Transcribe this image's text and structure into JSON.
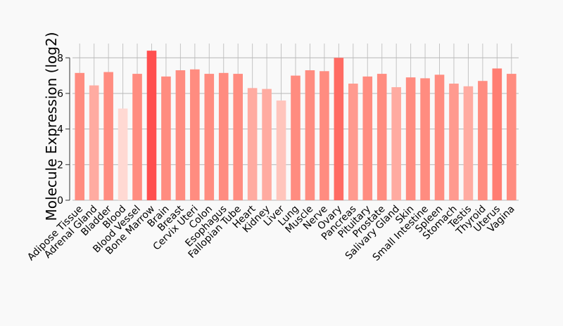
{
  "chart_data": {
    "type": "bar",
    "title": "",
    "xlabel": "",
    "ylabel": "Molecule Expression (log2)",
    "ylim": [
      0,
      8.8
    ],
    "yticks": [
      0,
      2,
      4,
      6,
      8
    ],
    "grid": true,
    "legend": "none",
    "categories": [
      "Adipose Tissue",
      "Adrenal Gland",
      "Bladder",
      "Blood",
      "Blood Vessel",
      "Bone Marrow",
      "Brain",
      "Breast",
      "Cervix Uteri",
      "Colon",
      "Esophagus",
      "Fallopian Tube",
      "Heart",
      "Kidney",
      "Liver",
      "Lung",
      "Muscle",
      "Nerve",
      "Ovary",
      "Pancreas",
      "Pituitary",
      "Prostate",
      "Salivary Gland",
      "Skin",
      "Small Intestine",
      "Spleen",
      "Stomach",
      "Testis",
      "Thyroid",
      "Uterus",
      "Vagina"
    ],
    "values": [
      7.15,
      6.45,
      7.2,
      5.15,
      7.1,
      8.4,
      6.95,
      7.3,
      7.35,
      7.1,
      7.15,
      7.1,
      6.3,
      6.25,
      5.6,
      7.0,
      7.3,
      7.25,
      8.0,
      6.55,
      6.95,
      7.1,
      6.35,
      6.9,
      6.85,
      7.05,
      6.55,
      6.4,
      6.7,
      7.4,
      7.1
    ],
    "colors": [
      "#ff8c80",
      "#ffaba1",
      "#ff8c80",
      "#ffd9d3",
      "#ff8c80",
      "#ff4f4f",
      "#ff8c80",
      "#ff8c80",
      "#ff8c80",
      "#ff8c80",
      "#ff8c80",
      "#ff8c80",
      "#ffaba1",
      "#ffaba1",
      "#ffc5bc",
      "#ff8c80",
      "#ff8c80",
      "#ff8c80",
      "#ff6b63",
      "#ff9a8f",
      "#ff8c80",
      "#ff8c80",
      "#ffaba1",
      "#ff8c80",
      "#ff8c80",
      "#ff8c80",
      "#ff9a8f",
      "#ffaba1",
      "#ff8c80",
      "#ff7d72",
      "#ff8c80"
    ]
  }
}
